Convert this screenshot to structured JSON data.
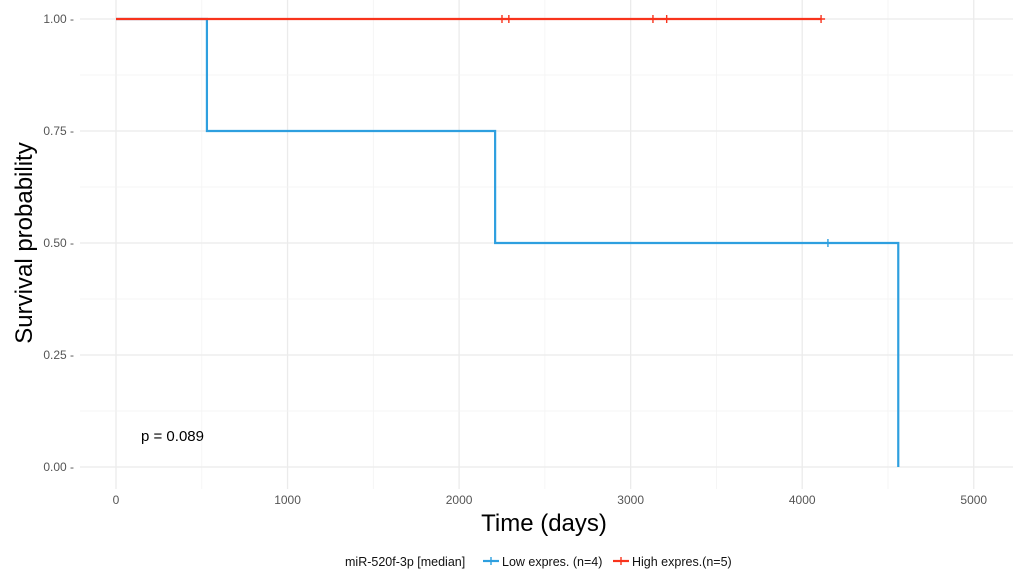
{
  "chart_data": {
    "type": "line",
    "subtype": "kaplan-meier step survival",
    "xlabel": "Time (days)",
    "ylabel": "Survival probability",
    "xlim": [
      -220,
      5250
    ],
    "ylim": [
      0,
      1
    ],
    "x_ticks": [
      0,
      1000,
      2000,
      3000,
      4000,
      5000
    ],
    "x_tick_labels": [
      "0",
      "1000",
      "2000",
      "3000",
      "4000",
      "5000"
    ],
    "y_ticks": [
      0,
      0.25,
      0.5,
      0.75,
      1
    ],
    "y_tick_labels": [
      "0.00 -",
      "0.25 -",
      "0.50 -",
      "0.75 -",
      "1.00 -"
    ],
    "grid": true,
    "legend_position": "bottom",
    "legend_title": "miR-520f-3p [median]",
    "annotation": "p = 0.089",
    "series": [
      {
        "name": "Low expres. (n=4)",
        "color": "#2e9fdf",
        "steps": [
          [
            0,
            1.0
          ],
          [
            530,
            0.75
          ],
          [
            2210,
            0.5
          ],
          [
            4560,
            0.0
          ]
        ],
        "end_x": 4560,
        "censored": [
          [
            4150,
            0.5
          ]
        ]
      },
      {
        "name": "High expres.(n=5)",
        "color": "#f8331c",
        "steps": [
          [
            0,
            1.0
          ]
        ],
        "end_x": 4110,
        "censored": [
          [
            2250,
            1.0
          ],
          [
            2290,
            1.0
          ],
          [
            3130,
            1.0
          ],
          [
            3210,
            1.0
          ],
          [
            4110,
            1.0
          ]
        ]
      }
    ]
  }
}
